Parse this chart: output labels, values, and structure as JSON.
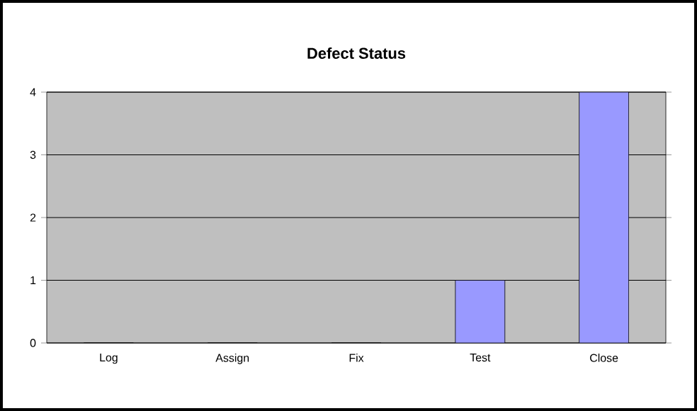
{
  "chart_data": {
    "type": "bar",
    "title": "Defect Status",
    "categories": [
      "Log",
      "Assign",
      "Fix",
      "Test",
      "Close"
    ],
    "values": [
      0,
      0,
      0,
      1,
      4
    ],
    "color": "#9999ff",
    "ylim": [
      0,
      4
    ],
    "yticks": [
      0,
      1,
      2,
      3,
      4
    ],
    "grid": "y"
  }
}
